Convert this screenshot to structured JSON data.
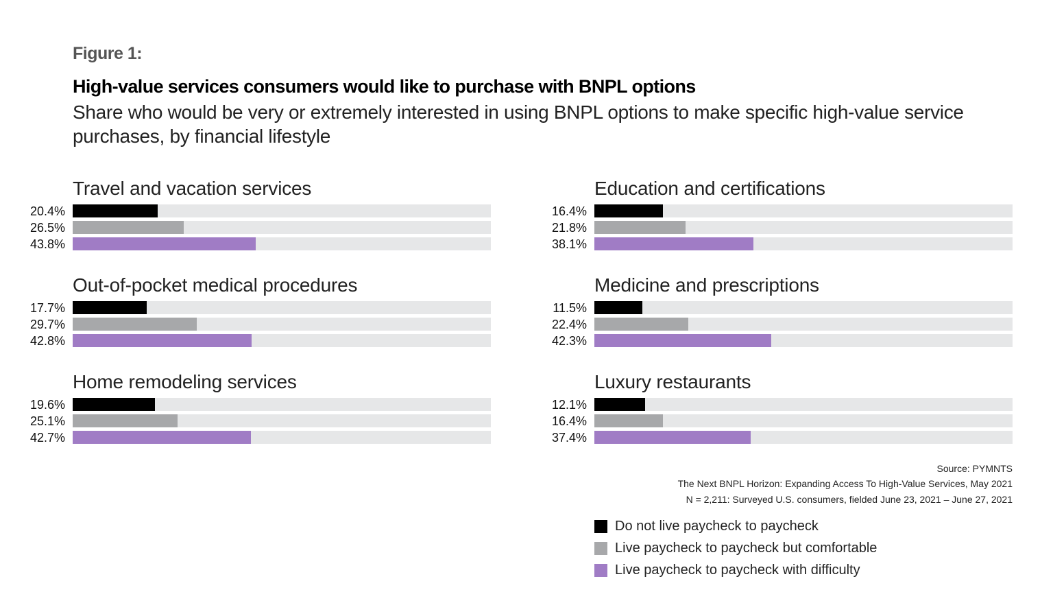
{
  "figure_label": "Figure 1:",
  "chart_data": {
    "type": "bar",
    "orientation": "horizontal",
    "title": "High-value services consumers would like to purchase with BNPL options",
    "subtitle": "Share who would be very or extremely interested in using BNPL options to make specific high-value service purchases, by financial lifestyle",
    "xlim": [
      0,
      100
    ],
    "unit": "%",
    "grid": false,
    "legend_position": "bottom-right",
    "series": [
      {
        "name": "Do not live paycheck to paycheck",
        "color": "#000000"
      },
      {
        "name": "Live paycheck to paycheck but comfortable",
        "color": "#a7a8aa"
      },
      {
        "name": "Live paycheck to paycheck with difficulty",
        "color": "#a07cc5"
      }
    ],
    "track_color": "#e6e7e8",
    "panels": [
      {
        "title": "Travel and vacation services",
        "values": [
          20.4,
          26.5,
          43.8
        ],
        "labels": [
          "20.4%",
          "26.5%",
          "43.8%"
        ]
      },
      {
        "title": "Education and certifications",
        "values": [
          16.4,
          21.8,
          38.1
        ],
        "labels": [
          "16.4%",
          "21.8%",
          "38.1%"
        ]
      },
      {
        "title": "Out-of-pocket medical procedures",
        "values": [
          17.7,
          29.7,
          42.8
        ],
        "labels": [
          "17.7%",
          "29.7%",
          "42.8%"
        ]
      },
      {
        "title": "Medicine and prescriptions",
        "values": [
          11.5,
          22.4,
          42.3
        ],
        "labels": [
          "11.5%",
          "22.4%",
          "42.3%"
        ]
      },
      {
        "title": "Home remodeling services",
        "values": [
          19.6,
          25.1,
          42.7
        ],
        "labels": [
          "19.6%",
          "25.1%",
          "42.7%"
        ]
      },
      {
        "title": "Luxury restaurants",
        "values": [
          12.1,
          16.4,
          37.4
        ],
        "labels": [
          "12.1%",
          "16.4%",
          "37.4%"
        ]
      }
    ]
  },
  "source": {
    "line1": "Source: PYMNTS",
    "line2": "The Next BNPL Horizon: Expanding Access To High-Value Services, May 2021",
    "line3": "N = 2,211: Surveyed U.S. consumers, fielded June 23, 2021 – June 27, 2021"
  }
}
